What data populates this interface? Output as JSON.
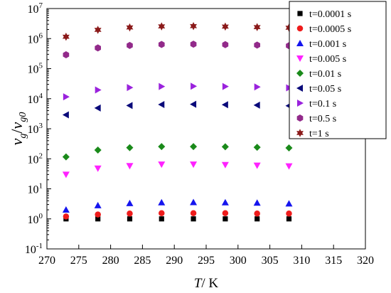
{
  "chart_data": {
    "type": "scatter",
    "xlabel": {
      "main": "T",
      "rest": "/ K"
    },
    "ylabel": {
      "v1": "v",
      "s1": "g",
      "sep": "/",
      "v2": "v",
      "s2": "g0"
    },
    "xlim": [
      270,
      320
    ],
    "ylim_log10": [
      -1,
      7
    ],
    "y_scale": "log",
    "x_ticks": [
      270,
      275,
      280,
      285,
      290,
      295,
      300,
      305,
      310,
      315,
      320
    ],
    "y_ticks": [
      {
        "base": "10",
        "exp": "-1"
      },
      {
        "base": "10",
        "exp": "0"
      },
      {
        "base": "10",
        "exp": "1"
      },
      {
        "base": "10",
        "exp": "2"
      },
      {
        "base": "10",
        "exp": "3"
      },
      {
        "base": "10",
        "exp": "4"
      },
      {
        "base": "10",
        "exp": "5"
      },
      {
        "base": "10",
        "exp": "6"
      },
      {
        "base": "10",
        "exp": "7"
      }
    ],
    "legend_position": "top-right",
    "x": [
      273,
      278,
      283,
      288,
      293,
      298,
      303,
      308
    ],
    "series": [
      {
        "name": "t=0.0001 s",
        "marker": "square",
        "color": "#000000",
        "values": [
          1.0,
          1.0,
          1.0,
          1.0,
          1.0,
          1.0,
          1.0,
          1.0
        ]
      },
      {
        "name": "t=0.0005 s",
        "marker": "circle",
        "color": "#ee1c1c",
        "values": [
          1.2,
          1.4,
          1.5,
          1.55,
          1.55,
          1.55,
          1.5,
          1.5
        ]
      },
      {
        "name": "t=0.001 s",
        "marker": "triangle-up",
        "color": "#1515ee",
        "values": [
          2.0,
          2.8,
          3.3,
          3.5,
          3.55,
          3.5,
          3.4,
          3.2
        ]
      },
      {
        "name": "t=0.005 s",
        "marker": "triangle-down",
        "color": "#ff22ff",
        "values": [
          30,
          48,
          58,
          65,
          65,
          63,
          60,
          57
        ]
      },
      {
        "name": "t=0.01 s",
        "marker": "diamond",
        "color": "#1a8a1a",
        "values": [
          115,
          195,
          235,
          255,
          255,
          250,
          240,
          230
        ]
      },
      {
        "name": "t=0.05 s",
        "marker": "triangle-left",
        "color": "#0a0a7a",
        "values": [
          2900,
          4900,
          5900,
          6400,
          6500,
          6300,
          6100,
          5800
        ]
      },
      {
        "name": "t=0.1 s",
        "marker": "triangle-right",
        "color": "#9a22dd",
        "values": [
          11500,
          19500,
          23500,
          25500,
          26000,
          25500,
          24500,
          23000
        ]
      },
      {
        "name": "t=0.5 s",
        "marker": "hexagon",
        "color": "#922a8a",
        "values": [
          290000,
          490000,
          590000,
          640000,
          650000,
          630000,
          610000,
          580000
        ]
      },
      {
        "name": "t=1 s",
        "marker": "star",
        "color": "#8b1a1a",
        "values": [
          1150000,
          1950000,
          2350000,
          2550000,
          2600000,
          2500000,
          2400000,
          2300000
        ]
      }
    ]
  }
}
